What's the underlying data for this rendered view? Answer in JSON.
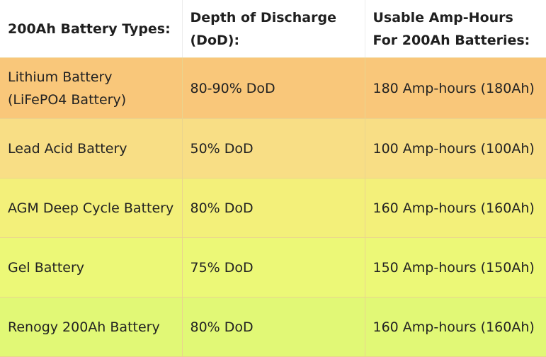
{
  "table": {
    "headers": [
      "200Ah Battery Types:",
      "Depth of Discharge (DoD):",
      "Usable Amp-Hours For 200Ah Batteries:"
    ],
    "rows": [
      {
        "type": "Lithium Battery (LiFePO4 Battery)",
        "dod": "80-90% DoD",
        "usable": "180 Amp-hours (180Ah)"
      },
      {
        "type": "Lead Acid Battery",
        "dod": "50% DoD",
        "usable": "100 Amp-hours (100Ah)"
      },
      {
        "type": "AGM Deep Cycle Battery",
        "dod": "80% DoD",
        "usable": "160 Amp-hours (160Ah)"
      },
      {
        "type": "Gel Battery",
        "dod": "75% DoD",
        "usable": "150 Amp-hours (150Ah)"
      },
      {
        "type": "Renogy 200Ah Battery",
        "dod": "80% DoD",
        "usable": "160 Amp-hours (160Ah)"
      }
    ]
  },
  "colors": {
    "row_backgrounds": [
      "#f9c77a",
      "#f8de85",
      "#f3f07a",
      "#ecf877",
      "#e1f876"
    ]
  }
}
